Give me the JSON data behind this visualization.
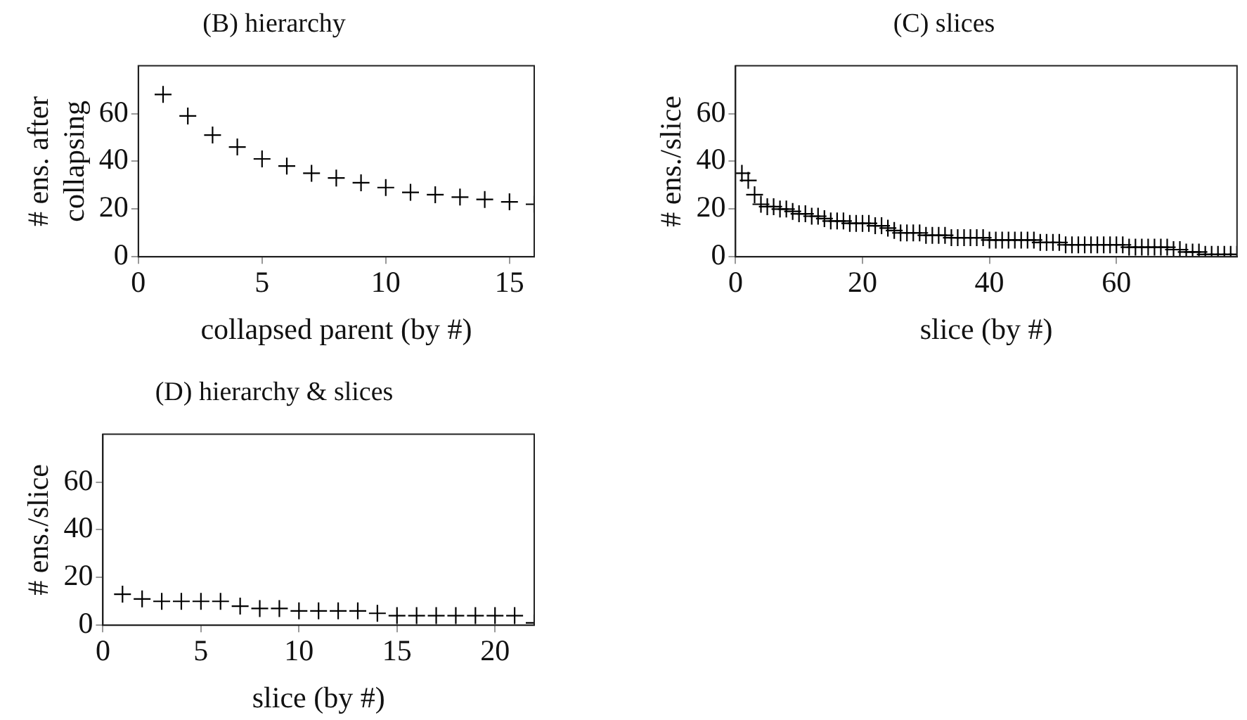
{
  "chart_data": [
    {
      "type": "scatter",
      "title": "(B) hierarchy",
      "xlabel": "collapsed parent (by #)",
      "ylabel": "# ens. after collapsing",
      "marker": "cross",
      "color": "#000000",
      "x": [
        1,
        2,
        3,
        4,
        5,
        6,
        7,
        8,
        9,
        10,
        11,
        12,
        13,
        14,
        15,
        16
      ],
      "values": [
        68,
        59,
        51,
        46,
        41,
        38,
        35,
        33,
        31,
        29,
        27,
        26,
        25,
        24,
        23,
        22
      ],
      "xlim": [
        0,
        16
      ],
      "xticks": [
        0,
        5,
        10,
        15
      ],
      "ylim": [
        0,
        80
      ],
      "yticks": [
        0,
        20,
        40,
        60
      ]
    },
    {
      "type": "scatter",
      "title": "(C) slices",
      "xlabel": "slice (by #)",
      "ylabel": "# ens./slice",
      "marker": "cross",
      "color": "#000000",
      "x": [
        1,
        2,
        3,
        4,
        5,
        6,
        7,
        8,
        9,
        10,
        11,
        12,
        13,
        14,
        15,
        16,
        17,
        18,
        19,
        20,
        21,
        22,
        23,
        24,
        25,
        26,
        27,
        28,
        29,
        30,
        31,
        32,
        33,
        34,
        35,
        36,
        37,
        38,
        39,
        40,
        41,
        42,
        43,
        44,
        45,
        46,
        47,
        48,
        49,
        50,
        51,
        52,
        53,
        54,
        55,
        56,
        57,
        58,
        59,
        60,
        61,
        62,
        63,
        64,
        65,
        66,
        67,
        68,
        69,
        70,
        71,
        72,
        73,
        74,
        75,
        76,
        77,
        78,
        79
      ],
      "values": [
        35,
        32,
        26,
        22,
        21,
        21,
        20,
        20,
        19,
        18,
        18,
        17,
        17,
        16,
        15,
        15,
        15,
        14,
        14,
        14,
        14,
        13,
        13,
        12,
        11,
        10,
        10,
        10,
        10,
        9,
        9,
        9,
        9,
        8,
        8,
        8,
        8,
        8,
        8,
        7,
        7,
        7,
        7,
        7,
        7,
        7,
        7,
        6,
        6,
        6,
        6,
        5,
        5,
        5,
        5,
        5,
        5,
        5,
        5,
        5,
        5,
        4,
        4,
        4,
        4,
        4,
        4,
        4,
        3,
        3,
        2,
        2,
        2,
        1,
        1,
        1,
        1,
        1,
        1
      ],
      "xlim": [
        0,
        79
      ],
      "xticks": [
        0,
        20,
        40,
        60
      ],
      "ylim": [
        0,
        80
      ],
      "yticks": [
        0,
        20,
        40,
        60
      ]
    },
    {
      "type": "scatter",
      "title": "(D) hierarchy & slices",
      "xlabel": "slice (by #)",
      "ylabel": "# ens./slice",
      "marker": "cross",
      "color": "#000000",
      "x": [
        1,
        2,
        3,
        4,
        5,
        6,
        7,
        8,
        9,
        10,
        11,
        12,
        13,
        14,
        15,
        16,
        17,
        18,
        19,
        20,
        21,
        22
      ],
      "values": [
        13,
        11,
        10,
        10,
        10,
        10,
        8,
        7,
        7,
        6,
        6,
        6,
        6,
        5,
        4,
        4,
        4,
        4,
        4,
        4,
        4,
        1
      ],
      "xlim": [
        0,
        22
      ],
      "xticks": [
        0,
        5,
        10,
        15,
        20
      ],
      "ylim": [
        0,
        80
      ],
      "yticks": [
        0,
        20,
        40,
        60
      ]
    }
  ]
}
